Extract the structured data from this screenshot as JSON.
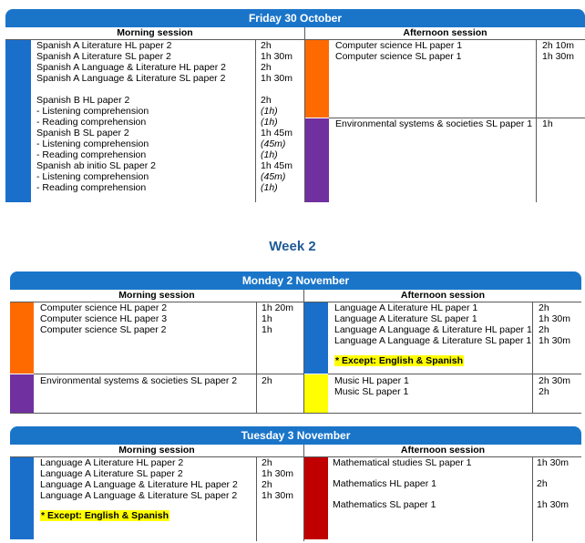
{
  "colors": {
    "header_blue": "#1a75c9",
    "bar_blue": "#1a6fcb",
    "bar_orange": "#ff6a00",
    "bar_purple": "#7030a0",
    "bar_yellow": "#ffff00",
    "bar_red": "#c00000",
    "week_text": "#1f5a96"
  },
  "friday": {
    "title": "Friday 30 October",
    "morning_label": "Morning session",
    "afternoon_label": "Afternoon session",
    "morning": {
      "subjects": [
        "Spanish A Literature HL paper 2",
        "Spanish A Literature SL paper 2",
        "Spanish A Language & Literature HL paper 2",
        "Spanish A Language & Literature SL paper 2",
        "",
        "Spanish B HL paper 2",
        "- Listening comprehension",
        "- Reading comprehension",
        "Spanish B SL paper 2",
        "- Listening comprehension",
        "- Reading comprehension",
        "Spanish ab initio SL paper 2",
        "- Listening comprehension",
        "- Reading comprehension"
      ],
      "durations": [
        "2h",
        "1h 30m",
        "2h",
        "1h 30m",
        "",
        "2h",
        "(1h)",
        "(1h)",
        "1h 45m",
        "(45m)",
        "(1h)",
        "1h 45m",
        "(45m)",
        "(1h)"
      ]
    },
    "afternoon_rows": [
      {
        "subjects": [
          "Computer science HL paper 1",
          "Computer science SL paper 1"
        ],
        "durations": [
          "2h 10m",
          "1h 30m"
        ]
      },
      {
        "subjects": [
          "Environmental systems & societies SL paper 1"
        ],
        "durations": [
          "1h"
        ]
      }
    ]
  },
  "week_title": "Week 2",
  "monday": {
    "title": "Monday 2 November",
    "morning_label": "Morning session",
    "afternoon_label": "Afternoon session",
    "morning_rows": [
      {
        "subjects": [
          "Computer science HL paper 2",
          "Computer science HL paper 3",
          "Computer science SL paper 2"
        ],
        "durations": [
          "1h 20m",
          "1h",
          "1h"
        ]
      },
      {
        "subjects": [
          "Environmental systems & societies SL paper 2"
        ],
        "durations": [
          "2h"
        ]
      }
    ],
    "afternoon_rows": [
      {
        "subjects": [
          "Language A Literature HL paper 1",
          "Language A Literature SL paper 1",
          "Language A Language & Literature HL paper 1",
          "Language A Language & Literature SL paper 1"
        ],
        "durations": [
          "2h",
          "1h 30m",
          "2h",
          "1h 30m"
        ],
        "note": "* Except: English & Spanish"
      },
      {
        "subjects": [
          "Music HL paper 1",
          "Music SL paper 1"
        ],
        "durations": [
          "2h 30m",
          "2h"
        ]
      }
    ]
  },
  "tuesday": {
    "title": "Tuesday 3 November",
    "morning_label": "Morning session",
    "afternoon_label": "Afternoon session",
    "morning": {
      "subjects": [
        "Language A Literature HL paper 2",
        "Language A Literature SL paper 2",
        "Language A Language & Literature HL paper 2",
        "Language A Language & Literature SL paper 2"
      ],
      "durations": [
        "2h",
        "1h 30m",
        "2h",
        "1h 30m"
      ],
      "note": "* Except: English & Spanish"
    },
    "afternoon": {
      "subjects": [
        "Mathematical studies SL paper 1",
        "Mathematics HL paper 1",
        "Mathematics SL paper 1"
      ],
      "durations": [
        "1h 30m",
        "2h",
        "1h 30m"
      ]
    }
  }
}
